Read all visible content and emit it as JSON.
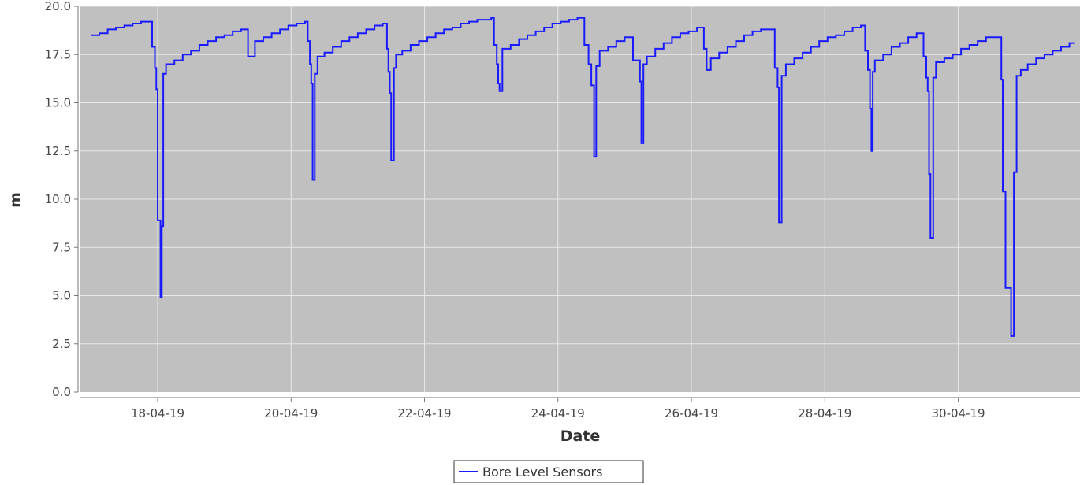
{
  "chart_data": {
    "type": "line",
    "title": "",
    "xlabel": "Date",
    "ylabel": "m",
    "x_tick_labels": [
      "18-04-19",
      "20-04-19",
      "22-04-19",
      "24-04-19",
      "26-04-19",
      "28-04-19",
      "30-04-19"
    ],
    "y_tick_labels": [
      "0.0",
      "2.5",
      "5.0",
      "7.5",
      "10.0",
      "12.5",
      "15.0",
      "17.5",
      "20.0"
    ],
    "xlim": [
      "2019-04-16T20:12",
      "2019-05-01T19:48"
    ],
    "ylim": [
      0,
      20
    ],
    "grid": true,
    "step": true,
    "legend_position": "bottom-center",
    "colors": {
      "plot_background": "#c0c0c0",
      "grid": "#e8e8e8",
      "line": "#1a1aff"
    },
    "series": [
      {
        "name": "Bore Level Sensors",
        "points": [
          [
            "2019-04-17T00:00",
            18.5
          ],
          [
            "2019-04-17T03:00",
            18.6
          ],
          [
            "2019-04-17T06:00",
            18.8
          ],
          [
            "2019-04-17T09:00",
            18.9
          ],
          [
            "2019-04-17T12:00",
            19.0
          ],
          [
            "2019-04-17T15:00",
            19.1
          ],
          [
            "2019-04-17T18:00",
            19.2
          ],
          [
            "2019-04-17T21:00",
            19.2
          ],
          [
            "2019-04-17T22:00",
            17.9
          ],
          [
            "2019-04-17T23:00",
            16.8
          ],
          [
            "2019-04-17T23:30",
            15.7
          ],
          [
            "2019-04-18T00:00",
            8.9
          ],
          [
            "2019-04-18T01:00",
            4.9
          ],
          [
            "2019-04-18T01:30",
            8.6
          ],
          [
            "2019-04-18T02:00",
            16.5
          ],
          [
            "2019-04-18T03:00",
            17.0
          ],
          [
            "2019-04-18T06:00",
            17.2
          ],
          [
            "2019-04-18T09:00",
            17.5
          ],
          [
            "2019-04-18T12:00",
            17.7
          ],
          [
            "2019-04-18T15:00",
            18.0
          ],
          [
            "2019-04-18T18:00",
            18.2
          ],
          [
            "2019-04-18T21:00",
            18.4
          ],
          [
            "2019-04-19T00:00",
            18.5
          ],
          [
            "2019-04-19T03:00",
            18.7
          ],
          [
            "2019-04-19T06:00",
            18.8
          ],
          [
            "2019-04-19T08:30",
            17.4
          ],
          [
            "2019-04-19T11:00",
            18.2
          ],
          [
            "2019-04-19T14:00",
            18.4
          ],
          [
            "2019-04-19T17:00",
            18.6
          ],
          [
            "2019-04-19T20:00",
            18.8
          ],
          [
            "2019-04-19T23:00",
            19.0
          ],
          [
            "2019-04-20T02:00",
            19.1
          ],
          [
            "2019-04-20T05:00",
            19.2
          ],
          [
            "2019-04-20T06:00",
            18.2
          ],
          [
            "2019-04-20T06:45",
            17.0
          ],
          [
            "2019-04-20T07:15",
            16.0
          ],
          [
            "2019-04-20T07:45",
            11.0
          ],
          [
            "2019-04-20T08:30",
            16.5
          ],
          [
            "2019-04-20T09:30",
            17.4
          ],
          [
            "2019-04-20T12:00",
            17.6
          ],
          [
            "2019-04-20T15:00",
            17.9
          ],
          [
            "2019-04-20T18:00",
            18.2
          ],
          [
            "2019-04-20T21:00",
            18.4
          ],
          [
            "2019-04-21T00:00",
            18.6
          ],
          [
            "2019-04-21T03:00",
            18.8
          ],
          [
            "2019-04-21T06:00",
            19.0
          ],
          [
            "2019-04-21T09:00",
            19.1
          ],
          [
            "2019-04-21T10:30",
            17.8
          ],
          [
            "2019-04-21T11:00",
            16.6
          ],
          [
            "2019-04-21T11:30",
            15.5
          ],
          [
            "2019-04-21T12:00",
            12.0
          ],
          [
            "2019-04-21T13:00",
            16.8
          ],
          [
            "2019-04-21T13:45",
            17.5
          ],
          [
            "2019-04-21T16:00",
            17.7
          ],
          [
            "2019-04-21T19:00",
            18.0
          ],
          [
            "2019-04-21T22:00",
            18.2
          ],
          [
            "2019-04-22T01:00",
            18.4
          ],
          [
            "2019-04-22T04:00",
            18.6
          ],
          [
            "2019-04-22T07:00",
            18.8
          ],
          [
            "2019-04-22T10:00",
            18.9
          ],
          [
            "2019-04-22T13:00",
            19.1
          ],
          [
            "2019-04-22T16:00",
            19.2
          ],
          [
            "2019-04-22T19:00",
            19.3
          ],
          [
            "2019-04-23T00:00",
            19.4
          ],
          [
            "2019-04-23T01:00",
            18.0
          ],
          [
            "2019-04-23T02:00",
            17.0
          ],
          [
            "2019-04-23T02:30",
            16.0
          ],
          [
            "2019-04-23T03:00",
            15.6
          ],
          [
            "2019-04-23T04:00",
            17.8
          ],
          [
            "2019-04-23T07:00",
            18.0
          ],
          [
            "2019-04-23T10:00",
            18.3
          ],
          [
            "2019-04-23T13:00",
            18.5
          ],
          [
            "2019-04-23T16:00",
            18.7
          ],
          [
            "2019-04-23T19:00",
            18.9
          ],
          [
            "2019-04-23T22:00",
            19.1
          ],
          [
            "2019-04-24T01:00",
            19.2
          ],
          [
            "2019-04-24T04:00",
            19.3
          ],
          [
            "2019-04-24T07:00",
            19.4
          ],
          [
            "2019-04-24T09:30",
            18.0
          ],
          [
            "2019-04-24T11:00",
            17.0
          ],
          [
            "2019-04-24T12:00",
            15.9
          ],
          [
            "2019-04-24T13:00",
            12.2
          ],
          [
            "2019-04-24T13:45",
            16.9
          ],
          [
            "2019-04-24T15:00",
            17.7
          ],
          [
            "2019-04-24T18:00",
            17.9
          ],
          [
            "2019-04-24T21:00",
            18.2
          ],
          [
            "2019-04-25T00:00",
            18.4
          ],
          [
            "2019-04-25T03:00",
            17.2
          ],
          [
            "2019-04-25T05:30",
            16.1
          ],
          [
            "2019-04-25T06:00",
            12.9
          ],
          [
            "2019-04-25T06:45",
            17.0
          ],
          [
            "2019-04-25T08:00",
            17.4
          ],
          [
            "2019-04-25T11:00",
            17.8
          ],
          [
            "2019-04-25T14:00",
            18.1
          ],
          [
            "2019-04-25T17:00",
            18.4
          ],
          [
            "2019-04-25T20:00",
            18.6
          ],
          [
            "2019-04-25T23:00",
            18.7
          ],
          [
            "2019-04-26T02:00",
            18.9
          ],
          [
            "2019-04-26T04:30",
            17.8
          ],
          [
            "2019-04-26T05:30",
            16.7
          ],
          [
            "2019-04-26T07:00",
            17.3
          ],
          [
            "2019-04-26T10:00",
            17.6
          ],
          [
            "2019-04-26T13:00",
            17.9
          ],
          [
            "2019-04-26T16:00",
            18.2
          ],
          [
            "2019-04-26T19:00",
            18.5
          ],
          [
            "2019-04-26T22:00",
            18.7
          ],
          [
            "2019-04-27T01:00",
            18.8
          ],
          [
            "2019-04-27T04:00",
            18.8
          ],
          [
            "2019-04-27T06:00",
            16.8
          ],
          [
            "2019-04-27T07:00",
            15.8
          ],
          [
            "2019-04-27T07:30",
            8.8
          ],
          [
            "2019-04-27T08:30",
            16.4
          ],
          [
            "2019-04-27T10:00",
            17.0
          ],
          [
            "2019-04-27T13:00",
            17.3
          ],
          [
            "2019-04-27T16:00",
            17.6
          ],
          [
            "2019-04-27T19:00",
            17.9
          ],
          [
            "2019-04-27T22:00",
            18.2
          ],
          [
            "2019-04-28T01:00",
            18.4
          ],
          [
            "2019-04-28T04:00",
            18.5
          ],
          [
            "2019-04-28T07:00",
            18.7
          ],
          [
            "2019-04-28T10:00",
            18.9
          ],
          [
            "2019-04-28T13:00",
            19.0
          ],
          [
            "2019-04-28T14:30",
            17.7
          ],
          [
            "2019-04-28T15:30",
            16.7
          ],
          [
            "2019-04-28T16:15",
            14.7
          ],
          [
            "2019-04-28T16:45",
            12.5
          ],
          [
            "2019-04-28T17:15",
            16.6
          ],
          [
            "2019-04-28T18:00",
            17.2
          ],
          [
            "2019-04-28T21:00",
            17.5
          ],
          [
            "2019-04-29T00:00",
            17.9
          ],
          [
            "2019-04-29T03:00",
            18.1
          ],
          [
            "2019-04-29T06:00",
            18.4
          ],
          [
            "2019-04-29T09:00",
            18.6
          ],
          [
            "2019-04-29T11:30",
            17.4
          ],
          [
            "2019-04-29T12:30",
            16.3
          ],
          [
            "2019-04-29T13:00",
            15.6
          ],
          [
            "2019-04-29T13:30",
            11.3
          ],
          [
            "2019-04-29T14:00",
            8.0
          ],
          [
            "2019-04-29T15:00",
            16.3
          ],
          [
            "2019-04-29T16:00",
            17.1
          ],
          [
            "2019-04-29T19:00",
            17.3
          ],
          [
            "2019-04-29T22:00",
            17.5
          ],
          [
            "2019-04-30T01:00",
            17.8
          ],
          [
            "2019-04-30T04:00",
            18.0
          ],
          [
            "2019-04-30T07:00",
            18.2
          ],
          [
            "2019-04-30T10:00",
            18.4
          ],
          [
            "2019-04-30T15:30",
            16.2
          ],
          [
            "2019-04-30T16:00",
            10.4
          ],
          [
            "2019-04-30T17:00",
            5.4
          ],
          [
            "2019-04-30T19:00",
            2.9
          ],
          [
            "2019-04-30T20:00",
            11.4
          ],
          [
            "2019-04-30T21:00",
            16.4
          ],
          [
            "2019-04-30T22:30",
            16.7
          ],
          [
            "2019-05-01T01:00",
            17.0
          ],
          [
            "2019-05-01T04:00",
            17.3
          ],
          [
            "2019-05-01T07:00",
            17.5
          ],
          [
            "2019-05-01T10:00",
            17.7
          ],
          [
            "2019-05-01T13:00",
            17.9
          ],
          [
            "2019-05-01T16:00",
            18.1
          ],
          [
            "2019-05-01T18:00",
            18.1
          ]
        ]
      }
    ]
  }
}
